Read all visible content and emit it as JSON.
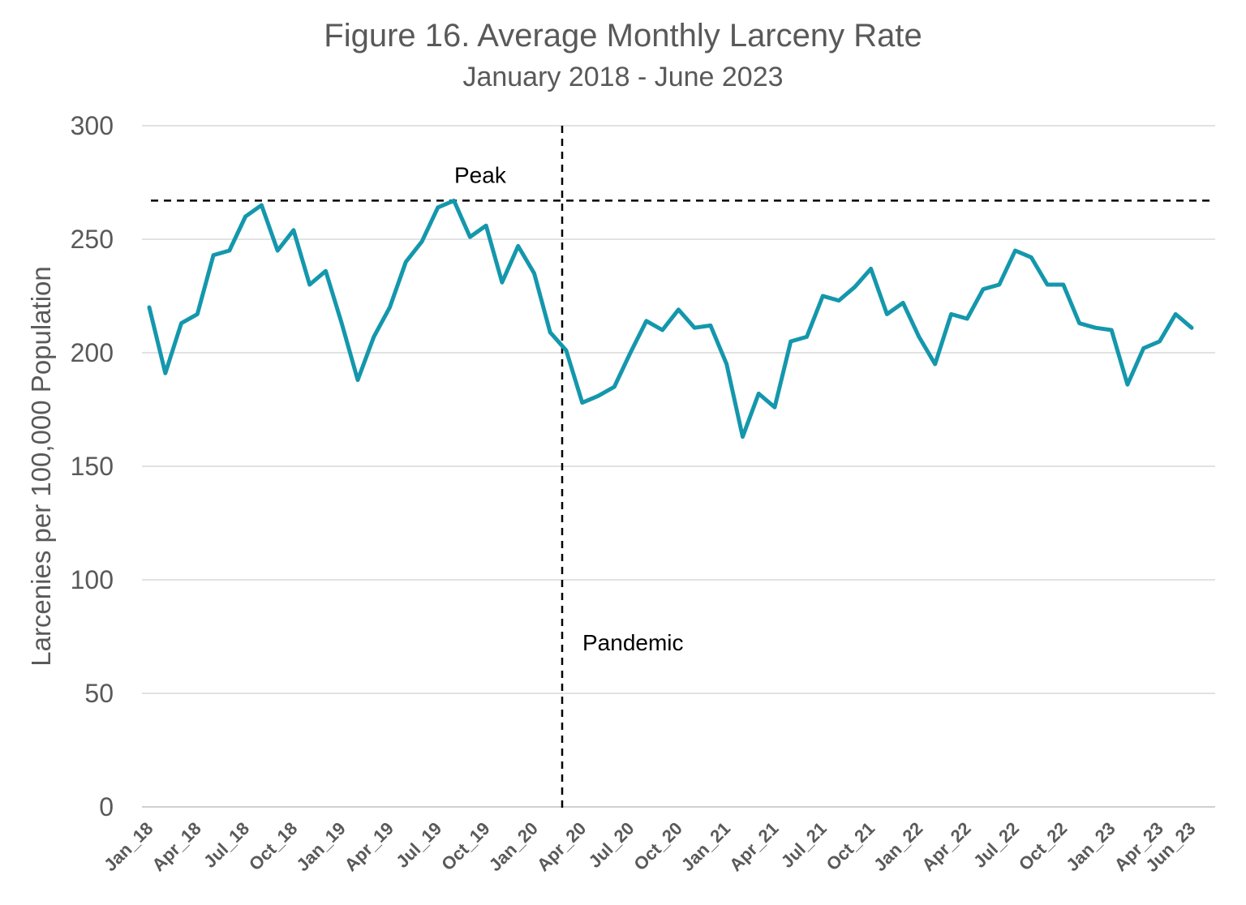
{
  "chart_data": {
    "type": "line",
    "title": "Figure 16. Average Monthly Larceny Rate",
    "subtitle": "January 2018 - June 2023",
    "ylabel": "Larcenies per 100,000 Population",
    "xlabel": "",
    "ylim": [
      0,
      300
    ],
    "yticks": [
      0,
      50,
      100,
      150,
      200,
      250,
      300
    ],
    "grid": true,
    "line_color": "#1497ac",
    "xtick_labels": [
      "Jan_18",
      "Apr_18",
      "Jul_18",
      "Oct_18",
      "Jan_19",
      "Apr_19",
      "Jul_19",
      "Oct_19",
      "Jan_20",
      "Apr_20",
      "Jul_20",
      "Oct_20",
      "Jan_21",
      "Apr_21",
      "Jul_21",
      "Oct_21",
      "Jan_22",
      "Apr_22",
      "Jul_22",
      "Oct_22",
      "Jan_23",
      "Apr_23",
      "Jun_23"
    ],
    "xtick_month_index": [
      0,
      3,
      6,
      9,
      12,
      15,
      18,
      21,
      24,
      27,
      30,
      33,
      36,
      39,
      42,
      45,
      48,
      51,
      54,
      57,
      60,
      63,
      65
    ],
    "series": [
      {
        "values": [
          220,
          191,
          213,
          217,
          243,
          245,
          260,
          265,
          245,
          254,
          230,
          236,
          213,
          188,
          207,
          220,
          240,
          249,
          264,
          267,
          251,
          256,
          231,
          247,
          235,
          209,
          201,
          178,
          181,
          185,
          200,
          214,
          210,
          219,
          211,
          212,
          195,
          163,
          182,
          176,
          205,
          207,
          225,
          223,
          229,
          237,
          217,
          222,
          207,
          195,
          217,
          215,
          228,
          230,
          245,
          242,
          230,
          230,
          213,
          211,
          210,
          186,
          202,
          205,
          217,
          211
        ]
      }
    ],
    "annotations": {
      "peak": {
        "label": "Peak",
        "value": 267
      },
      "pandemic": {
        "label": "Pandemic",
        "month_index": 26
      }
    }
  }
}
